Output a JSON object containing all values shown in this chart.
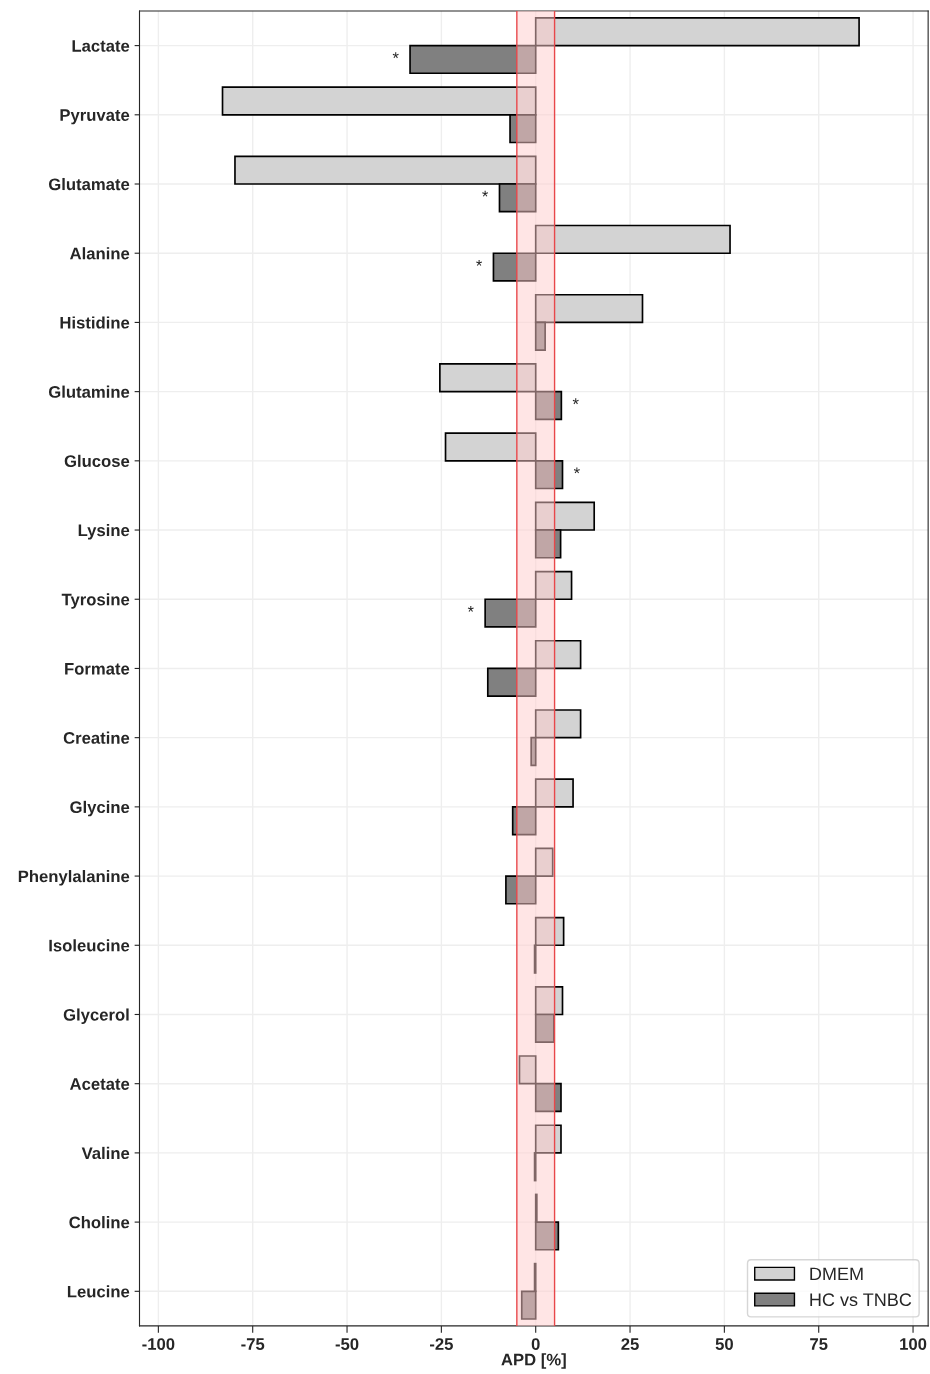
{
  "chart_data": {
    "type": "bar",
    "orientation": "horizontal",
    "xlabel": "APD [%]",
    "categories": [
      "Lactate",
      "Pyruvate",
      "Glutamate",
      "Alanine",
      "Histidine",
      "Glutamine",
      "Glucose",
      "Lysine",
      "Tyrosine",
      "Formate",
      "Creatine",
      "Glycine",
      "Phenylalanine",
      "Isoleucine",
      "Glycerol",
      "Acetate",
      "Valine",
      "Choline",
      "Leucine"
    ],
    "series": [
      {
        "name": "DMEM",
        "color": "#d3d3d3",
        "values": [
          85.7,
          -83.0,
          -79.7,
          51.5,
          28.3,
          -25.4,
          -23.9,
          15.5,
          9.5,
          11.9,
          11.9,
          9.9,
          4.5,
          7.4,
          7.1,
          -4.3,
          6.7,
          0.3,
          -0.3
        ]
      },
      {
        "name": "HC vs TNBC",
        "color": "#808080",
        "values": [
          -33.3,
          -6.8,
          -9.6,
          -11.2,
          2.5,
          6.8,
          7.1,
          6.6,
          -13.4,
          -12.7,
          -1.2,
          -6.1,
          -7.9,
          -0.3,
          4.8,
          6.7,
          -0.3,
          6.0,
          -3.7
        ]
      }
    ],
    "xlim": [
      -105,
      104
    ],
    "xticks": [
      -100,
      -75,
      -50,
      -25,
      0,
      25,
      50,
      75,
      100
    ],
    "bands": [
      {
        "axis": "x",
        "from": -5,
        "to": 5,
        "color": "#ffcccc"
      }
    ],
    "ref_lines": [
      {
        "axis": "x",
        "value": -5,
        "color": "#e8474a"
      },
      {
        "axis": "x",
        "value": 5,
        "color": "#e8474a"
      }
    ],
    "annotations": [
      {
        "text": "*",
        "x": -33.3,
        "y": "Lactate"
      },
      {
        "text": "*",
        "x": -9.6,
        "y": "Glutamate"
      },
      {
        "text": "*",
        "x": -11.2,
        "y": "Alanine"
      },
      {
        "text": "*",
        "x": 6.8,
        "y": "Glutamine"
      },
      {
        "text": "*",
        "x": 7.1,
        "y": "Glucose"
      },
      {
        "text": "*",
        "x": -13.4,
        "y": "Tyrosine"
      }
    ],
    "grid": true,
    "legend": "bottom right"
  }
}
